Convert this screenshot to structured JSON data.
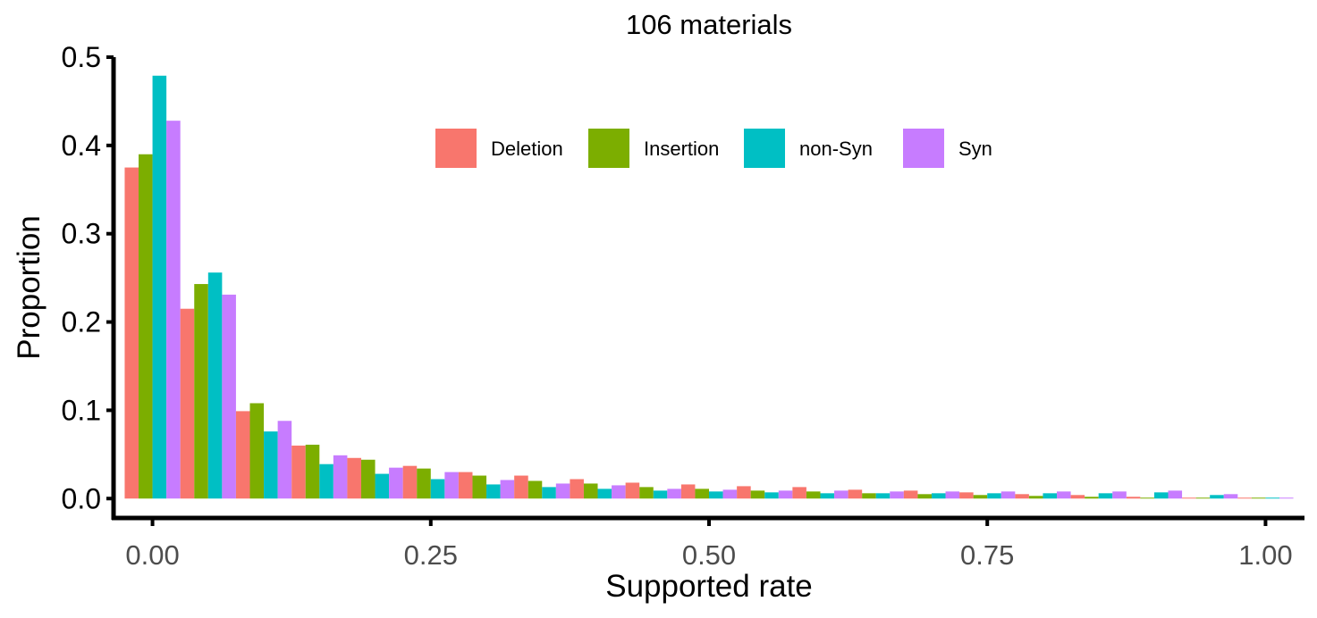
{
  "chart_data": {
    "type": "bar",
    "title": "106 materials",
    "xlabel": "Supported rate",
    "ylabel": "Proportion",
    "xlim": [
      -0.035,
      1.035
    ],
    "ylim": [
      -0.022,
      0.5
    ],
    "x_ticks": [
      {
        "value": 0,
        "label": "0.00"
      },
      {
        "value": 0.25,
        "label": "0.25"
      },
      {
        "value": 0.5,
        "label": "0.50"
      },
      {
        "value": 0.75,
        "label": "0.75"
      },
      {
        "value": 1,
        "label": "1.00"
      }
    ],
    "y_ticks": [
      {
        "value": 0,
        "label": "0.0"
      },
      {
        "value": 0.1,
        "label": "0.1"
      },
      {
        "value": 0.2,
        "label": "0.2"
      },
      {
        "value": 0.3,
        "label": "0.3"
      },
      {
        "value": 0.4,
        "label": "0.4"
      },
      {
        "value": 0.5,
        "label": "0.5"
      }
    ],
    "grid": false,
    "legend_position": "top-center",
    "bins": [
      0,
      0.05,
      0.1,
      0.15,
      0.2,
      0.25,
      0.3,
      0.35,
      0.4,
      0.45,
      0.5,
      0.55,
      0.6,
      0.65,
      0.7,
      0.75,
      0.8,
      0.85,
      0.9,
      0.95,
      1.0
    ],
    "series": [
      {
        "name": "Deletion",
        "color": "#F8766D",
        "values": [
          0.375,
          0.215,
          0.099,
          0.06,
          0.046,
          0.037,
          0.03,
          0.026,
          0.022,
          0.018,
          0.016,
          0.014,
          0.013,
          0.01,
          0.009,
          0.007,
          0.005,
          0.004,
          0.002,
          0.001,
          0.001
        ]
      },
      {
        "name": "Insertion",
        "color": "#7CAE00",
        "values": [
          0.39,
          0.243,
          0.108,
          0.061,
          0.044,
          0.034,
          0.026,
          0.02,
          0.017,
          0.013,
          0.011,
          0.009,
          0.008,
          0.006,
          0.005,
          0.004,
          0.003,
          0.002,
          0.001,
          0.001,
          0.001
        ]
      },
      {
        "name": "non-Syn",
        "color": "#00BFC4",
        "values": [
          0.479,
          0.256,
          0.076,
          0.039,
          0.028,
          0.022,
          0.016,
          0.013,
          0.011,
          0.009,
          0.008,
          0.007,
          0.006,
          0.006,
          0.006,
          0.006,
          0.006,
          0.006,
          0.007,
          0.004,
          0.001
        ]
      },
      {
        "name": "Syn",
        "color": "#C77CFF",
        "values": [
          0.428,
          0.231,
          0.088,
          0.049,
          0.035,
          0.03,
          0.021,
          0.017,
          0.015,
          0.011,
          0.01,
          0.009,
          0.009,
          0.008,
          0.008,
          0.008,
          0.008,
          0.008,
          0.009,
          0.005,
          0.001
        ]
      }
    ]
  }
}
